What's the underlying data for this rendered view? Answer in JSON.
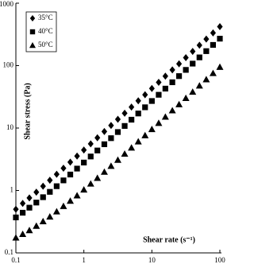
{
  "chart_data": {
    "type": "scatter",
    "x_label": "Shear rate (s⁻¹)",
    "y_label": "Shear stress (Pa)",
    "x": [
      0.1,
      0.126,
      0.158,
      0.2,
      0.251,
      0.316,
      0.398,
      0.501,
      0.631,
      0.794,
      1,
      1.26,
      1.58,
      2,
      2.51,
      3.16,
      3.98,
      5.01,
      6.31,
      7.94,
      10,
      12.6,
      15.8,
      20,
      25.1,
      31.6,
      39.8,
      50.1,
      63.1,
      79.4,
      100
    ],
    "series": [
      {
        "name": "35°C",
        "color": "#000000",
        "marker": "diamond",
        "values": [
          0.5,
          0.62,
          0.76,
          0.94,
          1.17,
          1.46,
          1.82,
          2.27,
          2.84,
          3.55,
          4.45,
          5.58,
          6.97,
          8.79,
          11,
          13.8,
          17.3,
          21.7,
          27.3,
          34.2,
          43,
          54.1,
          67.7,
          85.4,
          106.9,
          134.3,
          168.7,
          211.8,
          266.3,
          334.3,
          420.2
        ]
      },
      {
        "name": "40°C",
        "color": "#000000",
        "marker": "square",
        "values": [
          0.37,
          0.44,
          0.53,
          0.64,
          0.78,
          0.95,
          1.17,
          1.45,
          1.8,
          2.24,
          2.8,
          3.5,
          4.37,
          5.5,
          6.88,
          8.63,
          10.8,
          13.6,
          17.1,
          21.5,
          27.1,
          34.1,
          42.8,
          54.1,
          67.9,
          85.4,
          107.6,
          135.4,
          170.5,
          214.5,
          270.1
        ]
      },
      {
        "name": "50°C",
        "color": "#000000",
        "marker": "triangle",
        "values": [
          0.175,
          0.2,
          0.23,
          0.27,
          0.32,
          0.38,
          0.46,
          0.56,
          0.68,
          0.83,
          1.03,
          1.28,
          1.58,
          1.98,
          2.46,
          3.08,
          3.86,
          4.84,
          6.07,
          7.62,
          9.58,
          12,
          15.1,
          19.1,
          23.9,
          30.1,
          37.9,
          47.7,
          60,
          75.5,
          95.1
        ]
      }
    ],
    "xlim": [
      0.1,
      100
    ],
    "ylim": [
      0.1,
      1000
    ],
    "xticks": [
      0.1,
      1,
      10,
      100
    ],
    "yticks": [
      0.1,
      1,
      10,
      100,
      1000
    ],
    "xscale": "log",
    "yscale": "log",
    "grid": false,
    "legend": "upper left"
  }
}
